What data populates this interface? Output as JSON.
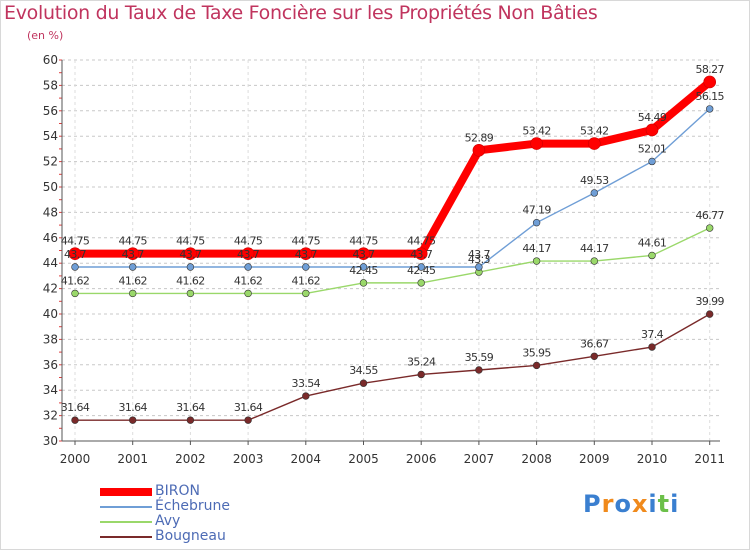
{
  "header": {
    "title": "Evolution du Taux de Taxe Foncière sur les Propriétés Non Bâties",
    "unit": "(en %)"
  },
  "chart_data": {
    "type": "line",
    "title": "Evolution du Taux de Taxe Foncière sur les Propriétés Non Bâties",
    "ylabel": "(en %)",
    "xlabel": "",
    "x": [
      "2000",
      "2001",
      "2002",
      "2003",
      "2004",
      "2005",
      "2006",
      "2007",
      "2008",
      "2009",
      "2010",
      "2011"
    ],
    "ylim": [
      30,
      60
    ],
    "yticks": [
      30,
      32,
      34,
      36,
      38,
      40,
      42,
      44,
      46,
      48,
      50,
      52,
      54,
      56,
      58,
      60
    ],
    "grid": "horizontal dashed",
    "legend_position": "bottom-left",
    "series": [
      {
        "name": "BIRON",
        "color": "#ff0000",
        "width": 8,
        "values": [
          44.75,
          44.75,
          44.75,
          44.75,
          44.75,
          44.75,
          44.75,
          52.89,
          53.42,
          53.42,
          54.49,
          58.27
        ],
        "labels": [
          "44.75",
          "44.75",
          "44.75",
          "44.75",
          "44.75",
          "44.75",
          "44.75",
          "52.89",
          "53.42",
          "53.42",
          "54.49",
          "58.27"
        ]
      },
      {
        "name": "Échebrune",
        "color": "#6f9ed6",
        "width": 1.4,
        "values": [
          43.7,
          43.7,
          43.7,
          43.7,
          43.7,
          43.7,
          43.7,
          43.7,
          47.19,
          49.53,
          52.01,
          56.15
        ],
        "labels": [
          "43.7",
          "43.7",
          "43.7",
          "43.7",
          "43.7",
          "43.7",
          "43.7",
          "43.7",
          "47.19",
          "49.53",
          "52.01",
          "56.15"
        ]
      },
      {
        "name": "Avy",
        "color": "#9ad86a",
        "width": 1.4,
        "values": [
          41.62,
          41.62,
          41.62,
          41.62,
          41.62,
          42.45,
          42.45,
          43.3,
          44.17,
          44.17,
          44.61,
          46.77
        ],
        "labels": [
          "41.62",
          "41.62",
          "41.62",
          "41.62",
          "41.62",
          "42.45",
          "42.45",
          "43.3",
          "44.17",
          "44.17",
          "44.61",
          "46.77"
        ]
      },
      {
        "name": "Bougneau",
        "color": "#7a2a2a",
        "width": 1.4,
        "values": [
          31.64,
          31.64,
          31.64,
          31.64,
          33.54,
          34.55,
          35.24,
          35.59,
          35.95,
          36.67,
          37.4,
          39.99
        ],
        "labels": [
          "31.64",
          "31.64",
          "31.64",
          "31.64",
          "33.54",
          "34.55",
          "35.24",
          "35.59",
          "35.95",
          "36.67",
          "37.4",
          "39.99"
        ]
      }
    ]
  },
  "logo": {
    "letters": [
      "P",
      "r",
      "o",
      "x",
      "i",
      "t",
      "i"
    ],
    "colors": [
      "#3a7fd0",
      "#f08a1c",
      "#3a7fd0",
      "#f08a1c",
      "#3a7fd0",
      "#6cc04a",
      "#3a7fd0"
    ]
  }
}
